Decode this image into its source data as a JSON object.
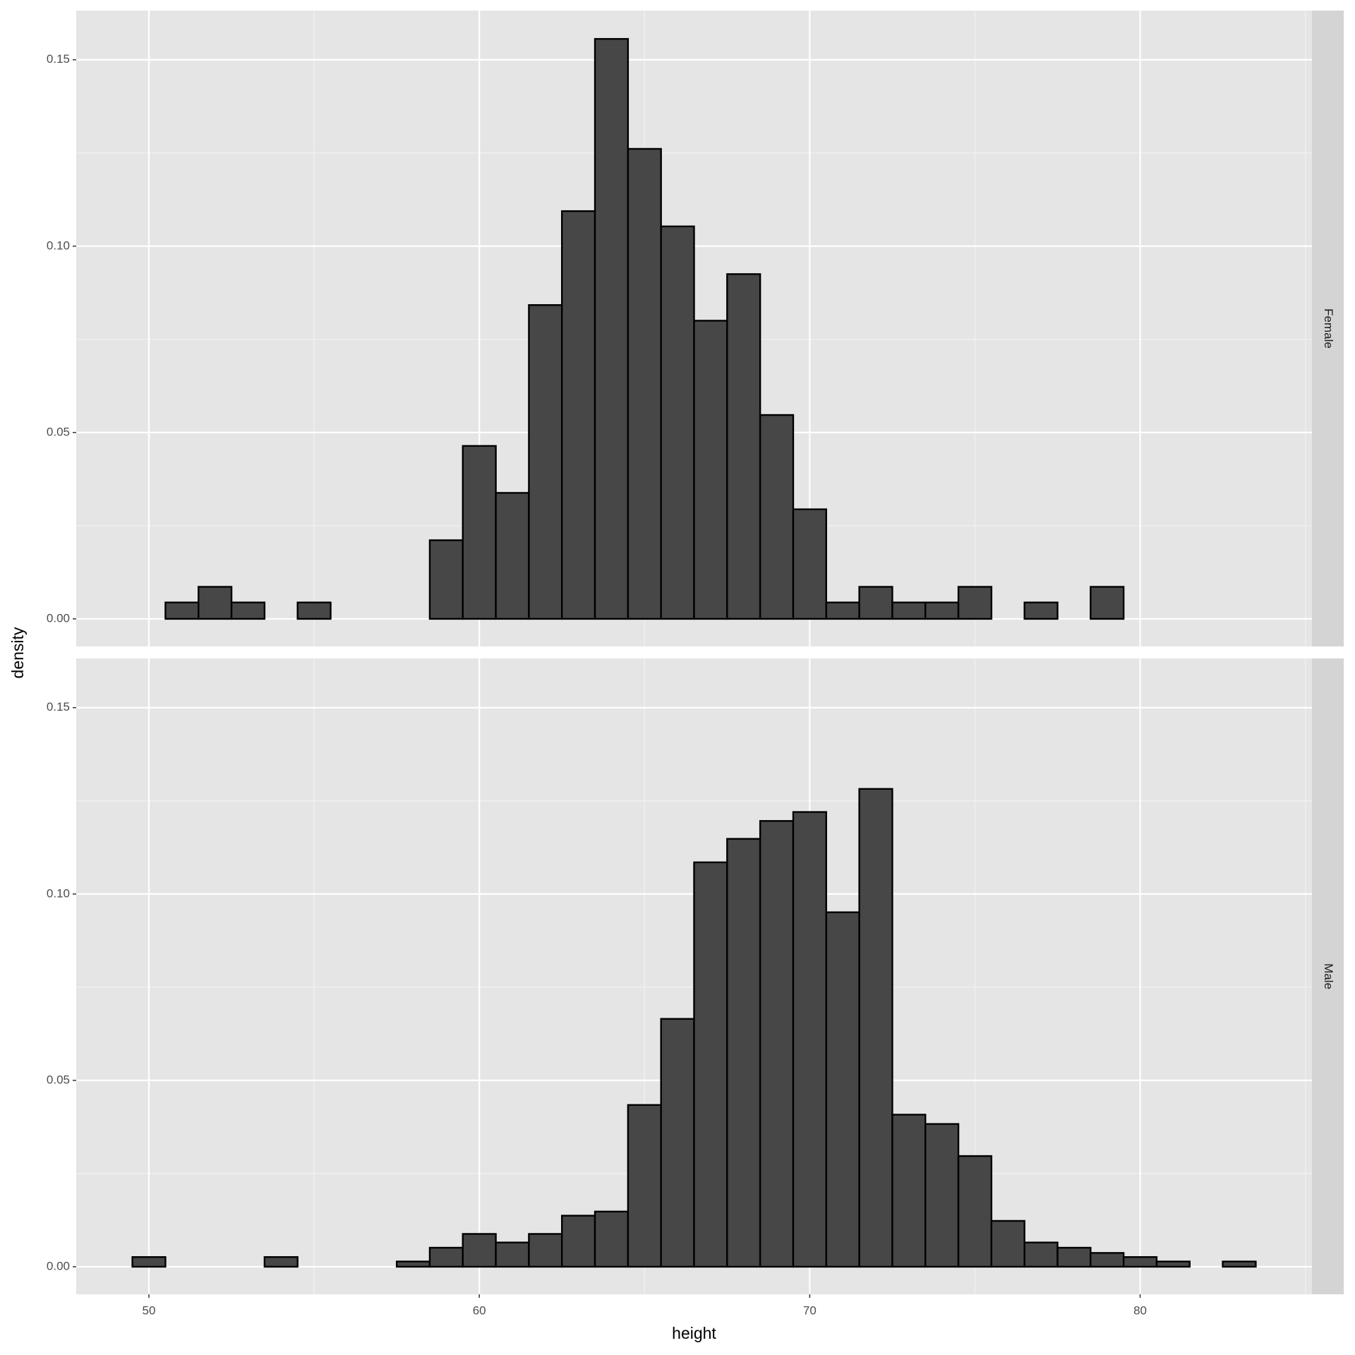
{
  "chart_data": [
    {
      "type": "histogram",
      "facet": "Female",
      "y_label": "density",
      "bins": [
        49.5,
        50.5,
        51.5,
        52.5,
        53.5,
        54.5,
        55.5,
        56.5,
        57.5,
        58.5,
        59.5,
        60.5,
        61.5,
        62.5,
        63.5,
        64.5,
        65.5,
        66.5,
        67.5,
        68.5,
        69.5,
        70.5,
        71.5,
        72.5,
        73.5,
        74.5,
        75.5,
        76.5,
        77.5,
        78.5,
        79.5,
        80.5,
        81.5,
        82.5,
        83.5
      ],
      "values": [
        0,
        0.0044,
        0.0086,
        0.0044,
        0,
        0.0044,
        0,
        0,
        0,
        0.0211,
        0.0464,
        0.0338,
        0.0842,
        0.1094,
        0.1556,
        0.1261,
        0.1053,
        0.08,
        0.0925,
        0.0547,
        0.0294,
        0.0044,
        0.0086,
        0.0044,
        0.0044,
        0.0086,
        0,
        0.0044,
        0,
        0.0086,
        0,
        0,
        0,
        0
      ],
      "color": "#474747",
      "xlim": [
        47.8,
        85.2
      ],
      "xticks": [
        50,
        60,
        70,
        80
      ],
      "ylim": [
        -0.0074,
        0.1632
      ],
      "yticks": [
        {
          "value": 0,
          "label": "0.00"
        },
        0.05,
        {
          "value": 0.1,
          "label": "0.10"
        },
        0.15
      ],
      "grid": true
    },
    {
      "type": "histogram",
      "facet": "Male",
      "x_label": "height",
      "bins": [
        49.5,
        50.5,
        51.5,
        52.5,
        53.5,
        54.5,
        55.5,
        56.5,
        57.5,
        58.5,
        59.5,
        60.5,
        61.5,
        62.5,
        63.5,
        64.5,
        65.5,
        66.5,
        67.5,
        68.5,
        69.5,
        70.5,
        71.5,
        72.5,
        73.5,
        74.5,
        75.5,
        76.5,
        77.5,
        78.5,
        79.5,
        80.5,
        81.5,
        82.5,
        83.5
      ],
      "values": [
        0.0026,
        0,
        0,
        0,
        0.0026,
        0,
        0,
        0,
        0.0014,
        0.0051,
        0.0088,
        0.0065,
        0.0088,
        0.0137,
        0.0148,
        0.0434,
        0.0665,
        0.1085,
        0.1148,
        0.1196,
        0.122,
        0.0951,
        0.1282,
        0.0408,
        0.0383,
        0.0297,
        0.0123,
        0.0065,
        0.0051,
        0.0037,
        0.0026,
        0.0014,
        0,
        0.0014
      ],
      "color": "#474747",
      "xlim": [
        47.8,
        85.2
      ],
      "xticks": [
        50,
        60,
        70,
        80
      ],
      "ylim": [
        -0.0074,
        0.1632
      ],
      "yticks": [
        {
          "value": 0,
          "label": "0.00"
        },
        0.05,
        {
          "value": 0.1,
          "label": "0.10"
        },
        0.15
      ],
      "grid": true
    }
  ]
}
